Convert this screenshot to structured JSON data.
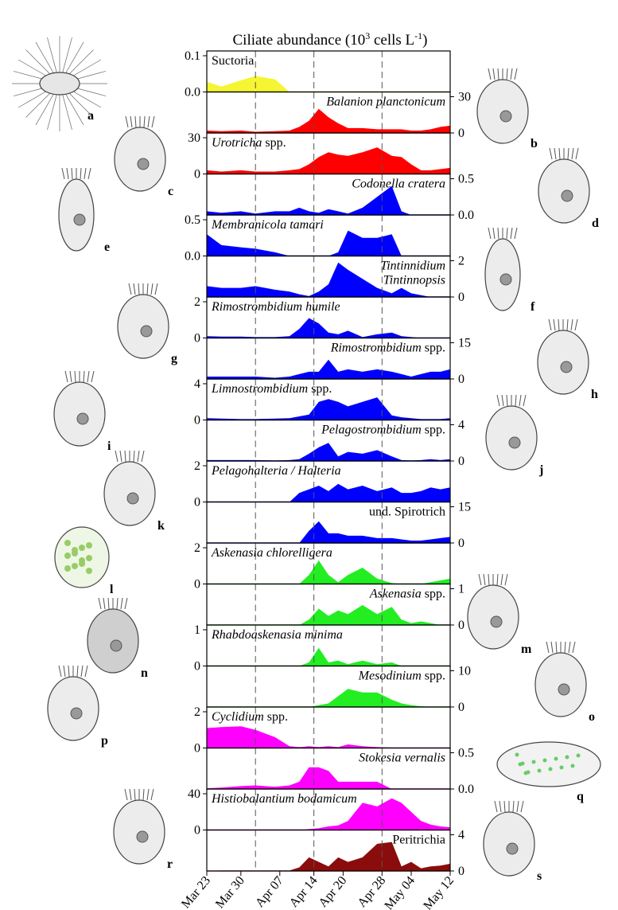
{
  "chart_data": {
    "type": "area",
    "title": "Ciliate abundance (10^3 cells L^-1)",
    "title_parts": {
      "main": "Ciliate abundance (10",
      "sup1": "3",
      "mid": " cells L",
      "sup2": "-1",
      "end": ")"
    },
    "x_tick_labels": [
      "Mar 23",
      "Mar 30",
      "Apr 07",
      "Apr 14",
      "Apr 20",
      "Apr 28",
      "May 04",
      "May 12"
    ],
    "dashed_lines_at": [
      "Apr 07",
      "Apr 20",
      "May 04"
    ],
    "x_days": [
      0,
      3,
      7,
      10,
      14,
      17,
      19,
      21,
      23,
      25,
      27,
      29,
      32,
      35,
      38,
      40,
      42,
      44,
      46,
      48,
      50
    ],
    "panels": [
      {
        "label": "Suctoria",
        "italic": false,
        "align": "left",
        "color": "#f5f531",
        "axis": "left",
        "ylim": [
          0,
          0.1
        ],
        "ticks": [
          "0.1",
          "0.0"
        ],
        "values": [
          0.028,
          0.015,
          0.032,
          0.044,
          0.035,
          0.0,
          0,
          0,
          0,
          0,
          0,
          0,
          0,
          0,
          0,
          0,
          0,
          0,
          0,
          0,
          0
        ]
      },
      {
        "label": "Balanion planctonicum",
        "italic": true,
        "align": "right",
        "color": "#ff0000",
        "axis": "right",
        "ylim": [
          0,
          30
        ],
        "ticks": [
          "30",
          "0"
        ],
        "values": [
          2,
          1.5,
          2,
          1,
          1.5,
          2,
          5,
          10,
          20,
          13,
          8,
          4,
          4,
          3,
          3,
          3,
          2,
          2,
          3,
          5,
          6
        ]
      },
      {
        "label": "Urotricha spp.",
        "label_italic": "Urotricha",
        "label_rest": " spp.",
        "color": "#ff0000",
        "axis": "left",
        "ylim": [
          0,
          30
        ],
        "ticks": [
          "30",
          "0"
        ],
        "values": [
          3,
          2,
          3,
          2,
          2,
          3,
          4,
          8,
          14,
          18,
          16,
          15,
          18,
          22,
          15,
          14,
          8,
          3,
          3,
          4,
          5
        ]
      },
      {
        "label": "Codonella cratera",
        "italic": true,
        "align": "right",
        "color": "#0000ff",
        "axis": "right",
        "ylim": [
          0,
          0.5
        ],
        "ticks": [
          "0.5",
          "0.0"
        ],
        "values": [
          0.05,
          0.03,
          0.05,
          0.02,
          0.05,
          0.05,
          0.1,
          0.05,
          0.03,
          0.08,
          0.05,
          0.02,
          0.1,
          0.25,
          0.4,
          0.05,
          0.0,
          0,
          0,
          0,
          0
        ]
      },
      {
        "label": "Membranicola tamari",
        "italic": true,
        "align": "left",
        "color": "#0000ff",
        "axis": "left",
        "ylim": [
          0,
          0.5
        ],
        "ticks": [
          "0.5",
          "0.0"
        ],
        "values": [
          0.3,
          0.15,
          0.12,
          0.1,
          0.05,
          0.0,
          0,
          0,
          0,
          0,
          0.05,
          0.35,
          0.25,
          0.25,
          0.3,
          0.0,
          0,
          0,
          0,
          0,
          0
        ]
      },
      {
        "label": "Tintinnidium Tintinnopsis",
        "lines": [
          "Tintinnidium",
          "Tintinnopsis"
        ],
        "italic": true,
        "align": "right",
        "color": "#0000ff",
        "axis": "right",
        "ylim": [
          0,
          2
        ],
        "ticks": [
          "2",
          "0"
        ],
        "values": [
          0.6,
          0.5,
          0.5,
          0.6,
          0.4,
          0.3,
          0.15,
          0.05,
          0.3,
          0.7,
          1.9,
          1.5,
          1.0,
          0.5,
          0.2,
          0.5,
          0.2,
          0.1,
          0,
          0,
          0
        ]
      },
      {
        "label": "Rimostrombidium humile",
        "italic": true,
        "align": "left",
        "color": "#0000ff",
        "axis": "left",
        "ylim": [
          0,
          2
        ],
        "ticks": [
          "2",
          "0"
        ],
        "values": [
          0.1,
          0.08,
          0.08,
          0.05,
          0.05,
          0.1,
          0.5,
          1.1,
          0.8,
          0.3,
          0.2,
          0.4,
          0.05,
          0.2,
          0.3,
          0.1,
          0.05,
          0,
          0,
          0,
          0
        ]
      },
      {
        "label": "Rimostrombidium spp.",
        "label_italic": "Rimostrombidium",
        "label_rest": " spp.",
        "align": "right",
        "color": "#0000ff",
        "axis": "right",
        "ylim": [
          0,
          15
        ],
        "ticks": [
          "15",
          "0"
        ],
        "values": [
          1,
          1,
          1,
          1,
          0.5,
          1,
          2,
          3,
          3,
          8,
          3,
          4,
          3,
          4,
          3,
          2,
          1,
          2,
          3,
          3,
          4
        ]
      },
      {
        "label": "Limnostrombidium spp.",
        "label_italic": "Limnostrombidium",
        "label_rest": " spp.",
        "align": "left",
        "color": "#0000ff",
        "axis": "left",
        "ylim": [
          0,
          4
        ],
        "ticks": [
          "4",
          "0"
        ],
        "values": [
          0.2,
          0.15,
          0.1,
          0.1,
          0.15,
          0.2,
          0.4,
          0.6,
          2.0,
          2.3,
          2.0,
          1.5,
          2.0,
          2.5,
          0.5,
          0.3,
          0.2,
          0.1,
          0.1,
          0.1,
          0.2
        ]
      },
      {
        "label": "Pelagostrombidium spp.",
        "label_italic": "Pelagostrombidium",
        "label_rest": " spp.",
        "align": "right",
        "color": "#0000ff",
        "axis": "right",
        "ylim": [
          0,
          4
        ],
        "ticks": [
          "4",
          "0"
        ],
        "values": [
          0.1,
          0.1,
          0.1,
          0.1,
          0.05,
          0.1,
          0.2,
          0.8,
          1.5,
          2.0,
          0.5,
          1.0,
          0.8,
          1.2,
          0.5,
          0.1,
          0.05,
          0.1,
          0.2,
          0.1,
          0.2
        ]
      },
      {
        "label": "Pelagohalteria / Halteria",
        "italic": true,
        "align": "left",
        "color": "#0000ff",
        "axis": "left",
        "ylim": [
          0,
          2
        ],
        "ticks": [
          "2",
          "0"
        ],
        "values": [
          0,
          0,
          0,
          0,
          0,
          0,
          0.5,
          0.7,
          0.9,
          0.6,
          1.0,
          0.7,
          0.9,
          0.6,
          0.8,
          0.5,
          0.5,
          0.6,
          0.8,
          0.7,
          0.8
        ]
      },
      {
        "label": "und. Spirotrich",
        "italic": false,
        "align": "right",
        "color": "#0000ff",
        "axis": "right",
        "ylim": [
          0,
          15
        ],
        "ticks": [
          "15",
          "0"
        ],
        "values": [
          0,
          0,
          0,
          0,
          0,
          0,
          0,
          5,
          9,
          4,
          4,
          3,
          3,
          2,
          2,
          1.5,
          1,
          1,
          1.5,
          2,
          2.5
        ]
      },
      {
        "label": "Askenasia chlorelligera",
        "italic": true,
        "align": "left",
        "color": "#22ee22",
        "axis": "left",
        "ylim": [
          0,
          2
        ],
        "ticks": [
          "2",
          "0"
        ],
        "values": [
          0,
          0,
          0,
          0,
          0,
          0,
          0,
          0.5,
          1.3,
          0.5,
          0.1,
          0.5,
          0.9,
          0.3,
          0.05,
          0,
          0,
          0,
          0.1,
          0.2,
          0.3
        ]
      },
      {
        "label": "Askenasia spp.",
        "label_italic": "Askenasia",
        "label_rest": " spp.",
        "align": "right",
        "color": "#22ee22",
        "axis": "right",
        "ylim": [
          0,
          1
        ],
        "ticks": [
          "1",
          "0"
        ],
        "values": [
          0,
          0,
          0,
          0,
          0,
          0,
          0,
          0.15,
          0.45,
          0.25,
          0.4,
          0.3,
          0.55,
          0.3,
          0.5,
          0.15,
          0.05,
          0.1,
          0.05,
          0,
          0
        ]
      },
      {
        "label": "Rhabdoaskenasia minima",
        "italic": true,
        "align": "left",
        "color": "#22ee22",
        "axis": "left",
        "ylim": [
          0,
          1
        ],
        "ticks": [
          "1",
          "0"
        ],
        "values": [
          0,
          0,
          0,
          0,
          0,
          0,
          0,
          0.1,
          0.5,
          0.1,
          0.15,
          0.05,
          0.15,
          0.05,
          0.1,
          0.0,
          0,
          0,
          0,
          0,
          0
        ]
      },
      {
        "label": "Mesodinium spp.",
        "label_italic": "Mesodinium",
        "label_rest": " spp.",
        "align": "right",
        "color": "#22ee22",
        "axis": "right",
        "ylim": [
          0,
          10
        ],
        "ticks": [
          "10",
          "0"
        ],
        "values": [
          0,
          0,
          0,
          0,
          0,
          0,
          0,
          0,
          0.5,
          1,
          3,
          5,
          4,
          4,
          2,
          1,
          0.5,
          0.2,
          0,
          0,
          0
        ]
      },
      {
        "label": "Cyclidium spp.",
        "label_italic": "Cyclidium",
        "label_rest": " spp.",
        "align": "left",
        "color": "#ff00ff",
        "axis": "left",
        "ylim": [
          0,
          2
        ],
        "ticks": [
          "2",
          "0"
        ],
        "values": [
          1.1,
          1.15,
          1.2,
          1.0,
          0.6,
          0.1,
          0.05,
          0.1,
          0.05,
          0.1,
          0.05,
          0.2,
          0.1,
          0.05,
          0.02,
          0.01,
          0,
          0,
          0,
          0,
          0
        ]
      },
      {
        "label": "Stokesia vernalis",
        "italic": true,
        "align": "right",
        "color": "#ff00ff",
        "axis": "right",
        "ylim": [
          0,
          0.5
        ],
        "ticks": [
          "0.5",
          "0.0"
        ],
        "values": [
          0.01,
          0.02,
          0.04,
          0.05,
          0.03,
          0.05,
          0.1,
          0.3,
          0.3,
          0.25,
          0.1,
          0.1,
          0.1,
          0.1,
          0.0,
          0,
          0,
          0,
          0,
          0,
          0
        ]
      },
      {
        "label": "Histiobalantium bodamicum",
        "italic": true,
        "align": "left",
        "color": "#ff00ff",
        "axis": "left",
        "ylim": [
          0,
          40
        ],
        "ticks": [
          "40",
          "0"
        ],
        "values": [
          0,
          0,
          0,
          0,
          0,
          0,
          0,
          1,
          2,
          4,
          5,
          10,
          30,
          26,
          35,
          30,
          20,
          10,
          6,
          4,
          3
        ]
      },
      {
        "label": "Peritrichia",
        "italic": false,
        "align": "right",
        "color": "#8b0c0c",
        "axis": "right",
        "ylim": [
          0,
          4
        ],
        "ticks": [
          "4",
          "0"
        ],
        "values": [
          0.02,
          0.05,
          0.05,
          0.05,
          0.05,
          0.05,
          0.4,
          1.5,
          1.0,
          0.5,
          1.5,
          1.0,
          1.5,
          3.0,
          3.2,
          0.5,
          1.0,
          0.3,
          0.5,
          0.6,
          0.8
        ]
      }
    ],
    "organisms": [
      "a",
      "b",
      "c",
      "d",
      "e",
      "f",
      "g",
      "h",
      "i",
      "j",
      "k",
      "l",
      "m",
      "n",
      "o",
      "p",
      "q",
      "r",
      "s"
    ]
  }
}
